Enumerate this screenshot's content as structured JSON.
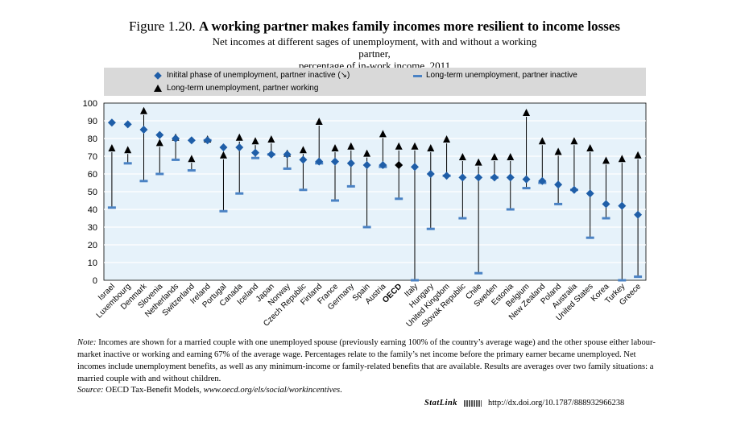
{
  "header": {
    "figure_number": "Figure 1.20.",
    "title": "A working partner makes family incomes more resilient to income losses",
    "subtitle_line1": "Net incomes at different sages of unemployment, with and without a working partner,",
    "subtitle_line2": "percentage of in-work income, 2011"
  },
  "legend": {
    "initial": "Initital phase of unemployment, partner inactive (↘)",
    "long_inactive": "Long-term unemployment, partner inactive",
    "long_working": "Long-term unemployment, partner working"
  },
  "colors": {
    "plot_bg": "#e6f2fa",
    "diamond": "#1f5ea8",
    "dash": "#4a82c4",
    "triangle": "#000000",
    "oecd_diamond": "#000000",
    "legend_bg": "#d9d9d9",
    "grid": "#ffffff"
  },
  "chart_data": {
    "type": "scatter",
    "ylim": [
      0,
      100
    ],
    "yticks": [
      0,
      10,
      20,
      30,
      40,
      50,
      60,
      70,
      80,
      90,
      100
    ],
    "legend_position": "top",
    "grid": true,
    "categories": [
      "Israel",
      "Luxembourg",
      "Denmark",
      "Slovenia",
      "Netherlands",
      "Switzerland",
      "Ireland",
      "Portugal",
      "Canada",
      "Iceland",
      "Japan",
      "Norway",
      "Czech Republic",
      "Finland",
      "France",
      "Germany",
      "Spain",
      "Austria",
      "OECD",
      "Italy",
      "Hungary",
      "United Kingdom",
      "Slovak Republic",
      "Chile",
      "Sweden",
      "Estonia",
      "Belgium",
      "New Zealand",
      "Poland",
      "Australia",
      "United States",
      "Korea",
      "Turkey",
      "Greece"
    ],
    "highlight_category": "OECD",
    "series": [
      {
        "name": "Initital phase of unemployment, partner inactive (↘)",
        "marker": "diamond",
        "values": [
          89,
          88,
          85,
          82,
          80,
          79,
          79,
          75,
          75,
          72,
          71,
          71,
          68,
          67,
          67,
          66,
          65,
          65,
          65,
          64,
          60,
          59,
          58,
          58,
          58,
          58,
          57,
          56,
          54,
          51,
          49,
          43,
          42,
          37
        ]
      },
      {
        "name": "Long-term unemployment, partner inactive",
        "marker": "dash",
        "values": [
          41,
          66,
          56,
          60,
          68,
          62,
          79,
          39,
          49,
          69,
          71,
          63,
          51,
          66,
          45,
          53,
          30,
          64,
          46,
          0,
          29,
          59,
          35,
          4,
          58,
          40,
          52,
          55,
          43,
          51,
          24,
          35,
          0,
          2
        ]
      },
      {
        "name": "Long-term unemployment, partner working",
        "marker": "triangle",
        "values": [
          75,
          74,
          96,
          78,
          81,
          69,
          80,
          71,
          81,
          79,
          80,
          72,
          74,
          90,
          75,
          76,
          72,
          83,
          76,
          76,
          75,
          80,
          70,
          67,
          70,
          70,
          95,
          79,
          73,
          79,
          75,
          68,
          69,
          71
        ]
      }
    ]
  },
  "note": {
    "label": "Note:",
    "text": " Incomes are shown for a married couple with one unemployed spouse (previously earning 100% of the country’s average wage) and the other spouse either labour-market inactive or working and earning 67% of the average wage. Percentages relate to the family’s net income before the primary earner became unemployed. Net incomes include unemployment benefits, as well as any minimum-income or family-related benefits that are available. Results are averages over two family situations: a married couple with and without children."
  },
  "source": {
    "label": "Source:",
    "text": " OECD Tax-Benefit Models, ",
    "url": "www.oecd.org/els/social/workincentives",
    "end": "."
  },
  "statlink": {
    "logo": "StatLink",
    "url": "http://dx.doi.org/10.1787/888932966238"
  }
}
